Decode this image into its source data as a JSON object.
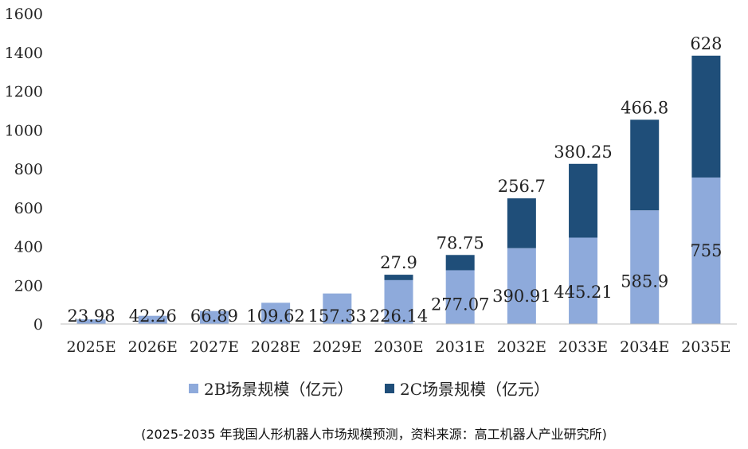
{
  "chart_data": {
    "type": "bar",
    "stacked": true,
    "categories": [
      "2025E",
      "2026E",
      "2027E",
      "2028E",
      "2029E",
      "2030E",
      "2031E",
      "2032E",
      "2033E",
      "2034E",
      "2035E"
    ],
    "series": [
      {
        "name": "2B场景规模（亿元）",
        "color": "#8eaadb",
        "values": [
          23.98,
          42.26,
          66.89,
          109.62,
          157.33,
          226.14,
          277.07,
          390.91,
          445.21,
          585.9,
          755
        ],
        "labels": [
          "23.98",
          "42.26",
          "66.89",
          "109.62",
          "157.33",
          "226.14",
          "277.07",
          "390.91",
          "445.21",
          "585.9",
          "755"
        ]
      },
      {
        "name": "2C场景规模（亿元）",
        "color": "#1f4e79",
        "values": [
          0,
          0,
          0,
          0,
          0,
          27.9,
          78.75,
          256.7,
          380.25,
          466.8,
          628
        ],
        "labels": [
          "",
          "",
          "",
          "",
          "",
          "27.9",
          "78.75",
          "256.7",
          "380.25",
          "466.8",
          "628"
        ]
      }
    ],
    "ylim": [
      0,
      1600
    ],
    "yticks": [
      0,
      200,
      400,
      600,
      800,
      1000,
      1200,
      1400,
      1600
    ],
    "ytick_labels": [
      "0",
      "200",
      "400",
      "600",
      "800",
      "1000",
      "1200",
      "1400",
      "1600"
    ],
    "grid": false,
    "legend": "bottom"
  },
  "caption": "(2025-2035 年我国人形机器人市场规模预测，资料来源：高工机器人产业研究所)"
}
